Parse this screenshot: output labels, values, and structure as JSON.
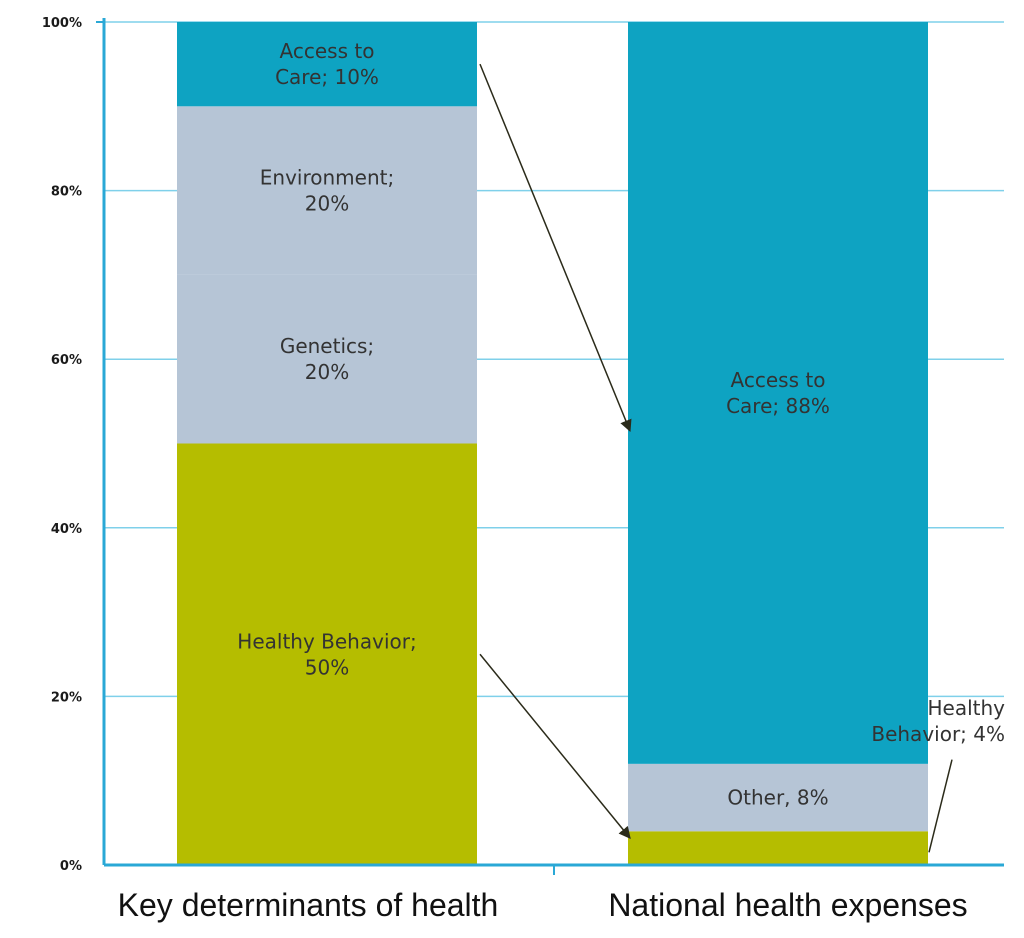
{
  "chart_data": {
    "type": "bar",
    "stacked": true,
    "percent_stacked": true,
    "ylim": [
      0,
      100
    ],
    "y_ticks": [
      "0%",
      "20%",
      "40%",
      "60%",
      "80%",
      "100%"
    ],
    "grid": true,
    "categories": [
      "Key determinants of health",
      "National health expenses"
    ],
    "segments": [
      [
        {
          "label": [
            "Healthy Behavior;",
            "50%"
          ],
          "value": 50,
          "color": "#b5bd00"
        },
        {
          "label": [
            "Genetics;",
            "20%"
          ],
          "value": 20,
          "color": "#b6c5d6"
        },
        {
          "label": [
            "Environment;",
            "20%"
          ],
          "value": 20,
          "color": "#b6c5d6"
        },
        {
          "label": [
            "Access to",
            "Care; 10%"
          ],
          "value": 10,
          "color": "#0ea3c2"
        }
      ],
      [
        {
          "label": [
            "Healthy",
            "Behavior; 4%"
          ],
          "value": 4,
          "color": "#b5bd00",
          "label_outside": true
        },
        {
          "label": [
            "Other, 8%"
          ],
          "value": 8,
          "color": "#b6c5d6"
        },
        {
          "label": [
            "Access to",
            "Care; 88%"
          ],
          "value": 88,
          "color": "#0ea3c2"
        }
      ]
    ],
    "arrows": [
      {
        "from": "Access to Care; 10%",
        "to": "Access to Care; 88%"
      },
      {
        "from": "Healthy Behavior; 50%",
        "to": "Healthy Behavior; 4%"
      }
    ],
    "colors": {
      "axis": "#2aa8d6",
      "grid": "#7fd0ea",
      "text": "#333333"
    }
  }
}
